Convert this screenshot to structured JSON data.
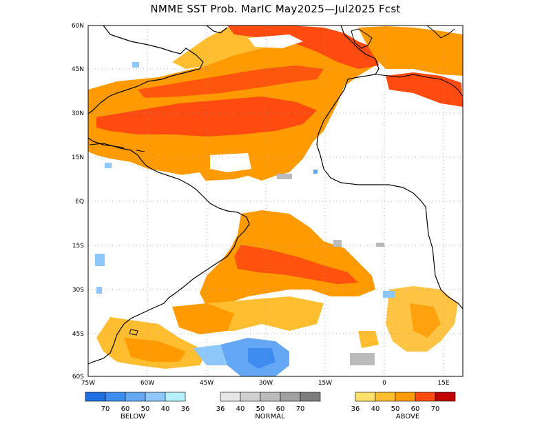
{
  "title": "NMME SST Prob. MarIC   May2025—Jul2025 Fcst",
  "map": {
    "lat_labels": [
      "60N",
      "45N",
      "30N",
      "15N",
      "EQ",
      "15S",
      "30S",
      "45S",
      "60S"
    ],
    "lon_labels": [
      "75W",
      "60W",
      "45W",
      "30W",
      "15W",
      "0",
      "15E"
    ],
    "lon_range": [
      -75,
      20
    ],
    "lat_range": [
      -60,
      60
    ]
  },
  "legends": [
    {
      "title": "BELOW",
      "colors": [
        "#1e6fe0",
        "#3f8cf0",
        "#64a8f5",
        "#8ec8fb",
        "#b4f0fb"
      ],
      "labels": [
        "70",
        "60",
        "50",
        "40",
        "36"
      ]
    },
    {
      "title": "NORMAL",
      "colors": [
        "#e6e6e6",
        "#d0d0d0",
        "#bbbbbb",
        "#a0a0a0",
        "#7d7d7d"
      ],
      "labels": [
        "36",
        "40",
        "50",
        "60",
        "70"
      ]
    },
    {
      "title": "ABOVE",
      "colors": [
        "#ffe06a",
        "#ffbe30",
        "#ff9a00",
        "#ff4a10",
        "#c00000"
      ],
      "labels": [
        "36",
        "40",
        "50",
        "60",
        "70"
      ]
    }
  ],
  "palette": {
    "above_40": "#ffbe30",
    "above_50": "#ff9a00",
    "above_60": "#ff4a10",
    "below_40": "#8ec8fb",
    "below_50": "#64a8f5",
    "normal_40": "#d0d0d0",
    "normal_50": "#bbbbbb"
  }
}
